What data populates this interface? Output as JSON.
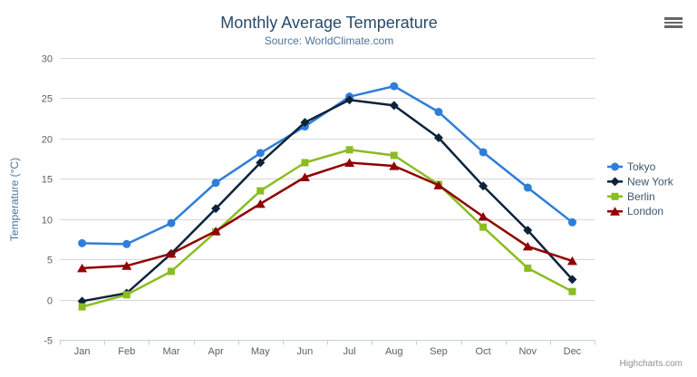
{
  "chart": {
    "title": "Monthly Average Temperature",
    "subtitle": "Source: WorldClimate.com",
    "y_axis_title": "Temperature (°C)",
    "credit": "Highcharts.com",
    "menu_icon": "hamburger-icon"
  },
  "chart_data": {
    "type": "line",
    "title": "Monthly Average Temperature",
    "subtitle": "Source: WorldClimate.com",
    "xlabel": "",
    "ylabel": "Temperature (°C)",
    "ylim": [
      -5,
      30
    ],
    "ytick_step": 5,
    "grid": true,
    "legend_position": "right",
    "categories": [
      "Jan",
      "Feb",
      "Mar",
      "Apr",
      "May",
      "Jun",
      "Jul",
      "Aug",
      "Sep",
      "Oct",
      "Nov",
      "Dec"
    ],
    "series": [
      {
        "name": "Tokyo",
        "color": "#2f7ed8",
        "marker": "circle",
        "values": [
          7.0,
          6.9,
          9.5,
          14.5,
          18.2,
          21.5,
          25.2,
          26.5,
          23.3,
          18.3,
          13.9,
          9.6
        ]
      },
      {
        "name": "New York",
        "color": "#0d233a",
        "marker": "diamond",
        "values": [
          -0.2,
          0.8,
          5.7,
          11.3,
          17.0,
          22.0,
          24.8,
          24.1,
          20.1,
          14.1,
          8.6,
          2.5
        ]
      },
      {
        "name": "Berlin",
        "color": "#8bbc21",
        "marker": "square",
        "values": [
          -0.9,
          0.6,
          3.5,
          8.4,
          13.5,
          17.0,
          18.6,
          17.9,
          14.3,
          9.0,
          3.9,
          1.0
        ]
      },
      {
        "name": "London",
        "color": "#910000",
        "marker": "triangle",
        "values": [
          3.9,
          4.2,
          5.7,
          8.5,
          11.9,
          15.2,
          17.0,
          16.6,
          14.2,
          10.3,
          6.6,
          4.8
        ]
      }
    ]
  },
  "ui_colors": {
    "title": "#274b6d",
    "subtitle": "#4d759e",
    "axis_title": "#4d759e",
    "tick_label": "#606060",
    "grid": "#d8d8d8",
    "axis_line": "#c0d0e0",
    "legend_text": "#3e576f",
    "credit": "#909090",
    "menu_icon": "#666666"
  }
}
